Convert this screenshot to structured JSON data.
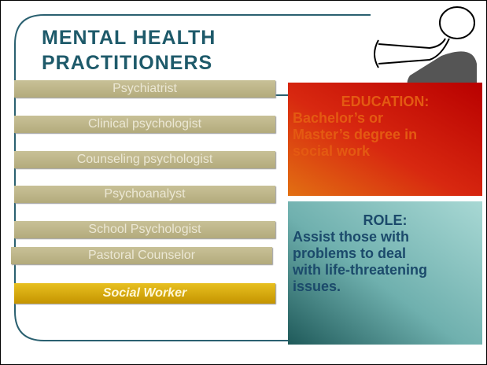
{
  "slide": {
    "title_lines": [
      "MENTAL HEALTH",
      "PRACTITIONERS"
    ],
    "items": [
      "Psychiatrist",
      "Clinical psychologist",
      "Counseling psychologist",
      "Psychoanalyst",
      "School Psychologist",
      "Pastoral Counselor",
      "Social Worker"
    ],
    "education": {
      "heading": "EDUCATION:",
      "lines": [
        "Bachelor’s or",
        "Master’s degree in",
        "social work"
      ]
    },
    "role": {
      "heading": "ROLE:",
      "lines": [
        "Assist those with",
        "problems to deal",
        "with life-threatening",
        "issues."
      ]
    }
  }
}
